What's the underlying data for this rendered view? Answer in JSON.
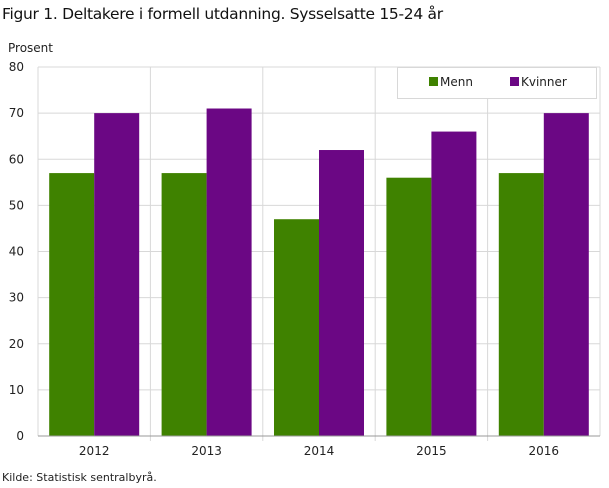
{
  "chart_data": {
    "type": "bar",
    "title": "Figur 1. Deltakere i formell utdanning. Sysselsatte 15-24 år",
    "ylabel": "Prosent",
    "xlabel": "",
    "source": "Kilde: Statistisk sentralbyrå.",
    "categories": [
      "2012",
      "2013",
      "2014",
      "2015",
      "2016"
    ],
    "series": [
      {
        "name": "Menn",
        "values": [
          57,
          57,
          47,
          56,
          57
        ],
        "color": "#3f8200"
      },
      {
        "name": "Kvinner",
        "values": [
          70,
          71,
          62,
          66,
          70
        ],
        "color": "#6b0784"
      }
    ],
    "ylim": [
      0,
      80
    ],
    "yticks": [
      0,
      10,
      20,
      30,
      40,
      50,
      60,
      70,
      80
    ],
    "grid": true,
    "legend": "top-right"
  }
}
